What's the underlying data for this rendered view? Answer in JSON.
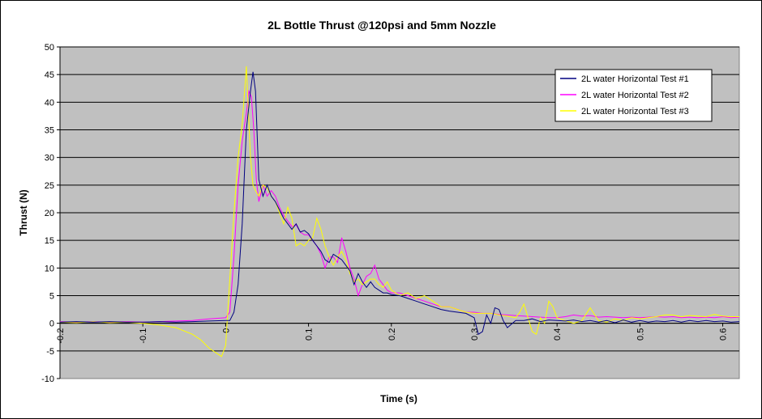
{
  "chart_data": {
    "type": "line",
    "title": "2L Bottle Thrust @120psi and 5mm Nozzle",
    "xlabel": "Time (s)",
    "ylabel": "Thrust (N)",
    "xlim": [
      -0.2,
      0.62
    ],
    "ylim": [
      -10,
      50
    ],
    "x_ticks": [
      "-0.2",
      "-0.1",
      "0",
      "0.1",
      "0.2",
      "0.3",
      "0.4",
      "0.5",
      "0.6"
    ],
    "x_tick_values": [
      -0.2,
      -0.1,
      0,
      0.1,
      0.2,
      0.3,
      0.4,
      0.5,
      0.6
    ],
    "y_ticks": [
      "-10",
      "-5",
      "0",
      "5",
      "10",
      "15",
      "20",
      "25",
      "30",
      "35",
      "40",
      "45",
      "50"
    ],
    "y_tick_values": [
      -10,
      -5,
      0,
      5,
      10,
      15,
      20,
      25,
      30,
      35,
      40,
      45,
      50
    ],
    "grid": "horizontal",
    "legend": "top-right",
    "plot_background": "#c0c0c0",
    "series": [
      {
        "name": "2L water Horizontal Test #1",
        "color": "#000080",
        "points": [
          [
            -0.2,
            0.2
          ],
          [
            -0.18,
            0.3
          ],
          [
            -0.16,
            0.2
          ],
          [
            -0.14,
            0.3
          ],
          [
            -0.12,
            0.2
          ],
          [
            -0.1,
            0.2
          ],
          [
            -0.08,
            0.3
          ],
          [
            -0.06,
            0.2
          ],
          [
            -0.04,
            0.3
          ],
          [
            -0.02,
            0.4
          ],
          [
            0,
            0.5
          ],
          [
            0.005,
            0.5
          ],
          [
            0.01,
            2
          ],
          [
            0.015,
            7
          ],
          [
            0.02,
            18
          ],
          [
            0.025,
            35
          ],
          [
            0.03,
            42
          ],
          [
            0.033,
            45.5
          ],
          [
            0.036,
            42
          ],
          [
            0.04,
            26
          ],
          [
            0.045,
            23
          ],
          [
            0.05,
            25
          ],
          [
            0.055,
            23
          ],
          [
            0.06,
            22
          ],
          [
            0.065,
            20.5
          ],
          [
            0.07,
            19
          ],
          [
            0.075,
            18
          ],
          [
            0.08,
            17
          ],
          [
            0.085,
            18
          ],
          [
            0.09,
            16.5
          ],
          [
            0.095,
            16.8
          ],
          [
            0.1,
            16.2
          ],
          [
            0.105,
            15
          ],
          [
            0.11,
            14
          ],
          [
            0.115,
            13
          ],
          [
            0.12,
            11.5
          ],
          [
            0.125,
            11
          ],
          [
            0.13,
            12.5
          ],
          [
            0.135,
            12
          ],
          [
            0.14,
            11.5
          ],
          [
            0.145,
            10.5
          ],
          [
            0.15,
            9.5
          ],
          [
            0.155,
            7
          ],
          [
            0.16,
            9
          ],
          [
            0.165,
            7.5
          ],
          [
            0.17,
            6.5
          ],
          [
            0.175,
            7.5
          ],
          [
            0.18,
            6.5
          ],
          [
            0.185,
            6
          ],
          [
            0.19,
            5.5
          ],
          [
            0.195,
            5.5
          ],
          [
            0.2,
            5.2
          ],
          [
            0.21,
            5
          ],
          [
            0.22,
            4.5
          ],
          [
            0.23,
            4
          ],
          [
            0.24,
            3.5
          ],
          [
            0.25,
            3
          ],
          [
            0.26,
            2.5
          ],
          [
            0.27,
            2.2
          ],
          [
            0.28,
            2
          ],
          [
            0.29,
            1.8
          ],
          [
            0.3,
            1
          ],
          [
            0.305,
            -2
          ],
          [
            0.31,
            -1.5
          ],
          [
            0.315,
            1.5
          ],
          [
            0.32,
            0
          ],
          [
            0.325,
            2.8
          ],
          [
            0.33,
            2.5
          ],
          [
            0.335,
            0.5
          ],
          [
            0.34,
            -0.8
          ],
          [
            0.35,
            0.5
          ],
          [
            0.36,
            0.5
          ],
          [
            0.37,
            0.8
          ],
          [
            0.38,
            0.3
          ],
          [
            0.39,
            0.6
          ],
          [
            0.4,
            0.5
          ],
          [
            0.41,
            0.4
          ],
          [
            0.42,
            0.6
          ],
          [
            0.43,
            0.3
          ],
          [
            0.44,
            0.5
          ],
          [
            0.45,
            0.2
          ],
          [
            0.46,
            0.5
          ],
          [
            0.47,
            0.1
          ],
          [
            0.48,
            0.6
          ],
          [
            0.49,
            0.2
          ],
          [
            0.5,
            0.5
          ],
          [
            0.51,
            0.2
          ],
          [
            0.52,
            0.4
          ],
          [
            0.53,
            0.3
          ],
          [
            0.54,
            0.5
          ],
          [
            0.55,
            0.2
          ],
          [
            0.56,
            0.5
          ],
          [
            0.57,
            0.3
          ],
          [
            0.58,
            0.5
          ],
          [
            0.59,
            0.3
          ],
          [
            0.6,
            0.4
          ],
          [
            0.61,
            0.2
          ],
          [
            0.62,
            0.3
          ]
        ]
      },
      {
        "name": "2L water Horizontal Test #2",
        "color": "#ff00ff",
        "points": [
          [
            -0.2,
            0.3
          ],
          [
            -0.18,
            0.2
          ],
          [
            -0.16,
            0.3
          ],
          [
            -0.14,
            0.2
          ],
          [
            -0.12,
            0.3
          ],
          [
            -0.1,
            0.2
          ],
          [
            -0.08,
            0.3
          ],
          [
            -0.06,
            0.4
          ],
          [
            -0.04,
            0.5
          ],
          [
            -0.02,
            0.8
          ],
          [
            0,
            1
          ],
          [
            0.005,
            2
          ],
          [
            0.01,
            12
          ],
          [
            0.015,
            25
          ],
          [
            0.02,
            33
          ],
          [
            0.025,
            38
          ],
          [
            0.028,
            42
          ],
          [
            0.031,
            41
          ],
          [
            0.034,
            35
          ],
          [
            0.037,
            26
          ],
          [
            0.04,
            22
          ],
          [
            0.045,
            25
          ],
          [
            0.05,
            23
          ],
          [
            0.055,
            24
          ],
          [
            0.06,
            23
          ],
          [
            0.065,
            21
          ],
          [
            0.07,
            19.5
          ],
          [
            0.075,
            18.5
          ],
          [
            0.08,
            17.5
          ],
          [
            0.085,
            17.8
          ],
          [
            0.09,
            16.5
          ],
          [
            0.095,
            16
          ],
          [
            0.1,
            16
          ],
          [
            0.105,
            15
          ],
          [
            0.11,
            14
          ],
          [
            0.115,
            12.5
          ],
          [
            0.12,
            10
          ],
          [
            0.125,
            12
          ],
          [
            0.13,
            12
          ],
          [
            0.135,
            11
          ],
          [
            0.14,
            15.5
          ],
          [
            0.145,
            13
          ],
          [
            0.15,
            10
          ],
          [
            0.155,
            8
          ],
          [
            0.16,
            5
          ],
          [
            0.165,
            7
          ],
          [
            0.17,
            8.5
          ],
          [
            0.175,
            9
          ],
          [
            0.18,
            10.5
          ],
          [
            0.185,
            8
          ],
          [
            0.19,
            7
          ],
          [
            0.195,
            6
          ],
          [
            0.2,
            5.5
          ],
          [
            0.21,
            5.5
          ],
          [
            0.22,
            5
          ],
          [
            0.23,
            4.5
          ],
          [
            0.24,
            4
          ],
          [
            0.25,
            3.5
          ],
          [
            0.26,
            3
          ],
          [
            0.27,
            3
          ],
          [
            0.28,
            2.5
          ],
          [
            0.29,
            2
          ],
          [
            0.3,
            2
          ],
          [
            0.31,
            1.8
          ],
          [
            0.32,
            1.8
          ],
          [
            0.33,
            1.6
          ],
          [
            0.34,
            1.5
          ],
          [
            0.35,
            1.4
          ],
          [
            0.36,
            1.3
          ],
          [
            0.37,
            1.2
          ],
          [
            0.38,
            1.1
          ],
          [
            0.39,
            1
          ],
          [
            0.4,
            1
          ],
          [
            0.41,
            1.2
          ],
          [
            0.42,
            1.5
          ],
          [
            0.43,
            1.3
          ],
          [
            0.44,
            1.4
          ],
          [
            0.45,
            1.1
          ],
          [
            0.46,
            1.2
          ],
          [
            0.47,
            1.1
          ],
          [
            0.48,
            1
          ],
          [
            0.49,
            1.1
          ],
          [
            0.5,
            1
          ],
          [
            0.51,
            1.1
          ],
          [
            0.52,
            1.2
          ],
          [
            0.53,
            1.1
          ],
          [
            0.54,
            1.2
          ],
          [
            0.55,
            1
          ],
          [
            0.56,
            1.1
          ],
          [
            0.57,
            1
          ],
          [
            0.58,
            1.1
          ],
          [
            0.59,
            1
          ],
          [
            0.6,
            1.2
          ],
          [
            0.61,
            1
          ],
          [
            0.62,
            1.1
          ]
        ]
      },
      {
        "name": "2L water Horizontal Test #3",
        "color": "#ffff00",
        "points": [
          [
            -0.2,
            0.2
          ],
          [
            -0.18,
            0.1
          ],
          [
            -0.16,
            0.3
          ],
          [
            -0.14,
            0.1
          ],
          [
            -0.12,
            0.2
          ],
          [
            -0.1,
            0
          ],
          [
            -0.08,
            -0.3
          ],
          [
            -0.06,
            -0.8
          ],
          [
            -0.04,
            -2
          ],
          [
            -0.03,
            -3
          ],
          [
            -0.02,
            -4.5
          ],
          [
            -0.01,
            -5.5
          ],
          [
            -0.005,
            -6
          ],
          [
            0,
            -4
          ],
          [
            0.005,
            8
          ],
          [
            0.01,
            20
          ],
          [
            0.015,
            30
          ],
          [
            0.02,
            36
          ],
          [
            0.025,
            46.5
          ],
          [
            0.03,
            30
          ],
          [
            0.033,
            25
          ],
          [
            0.036,
            24
          ],
          [
            0.04,
            23
          ],
          [
            0.045,
            25
          ],
          [
            0.05,
            24.5
          ],
          [
            0.055,
            23
          ],
          [
            0.06,
            22
          ],
          [
            0.065,
            20
          ],
          [
            0.07,
            18
          ],
          [
            0.075,
            21
          ],
          [
            0.08,
            19
          ],
          [
            0.085,
            14
          ],
          [
            0.09,
            14.5
          ],
          [
            0.095,
            14
          ],
          [
            0.1,
            15
          ],
          [
            0.105,
            15.5
          ],
          [
            0.11,
            19
          ],
          [
            0.115,
            17
          ],
          [
            0.12,
            14
          ],
          [
            0.125,
            12
          ],
          [
            0.13,
            10.5
          ],
          [
            0.135,
            12
          ],
          [
            0.14,
            13
          ],
          [
            0.145,
            11.5
          ],
          [
            0.15,
            9
          ],
          [
            0.155,
            7.5
          ],
          [
            0.16,
            8
          ],
          [
            0.165,
            7
          ],
          [
            0.17,
            7.5
          ],
          [
            0.175,
            8
          ],
          [
            0.18,
            8
          ],
          [
            0.185,
            7
          ],
          [
            0.19,
            6.5
          ],
          [
            0.195,
            7.5
          ],
          [
            0.2,
            6
          ],
          [
            0.21,
            5
          ],
          [
            0.22,
            5.5
          ],
          [
            0.23,
            4.5
          ],
          [
            0.24,
            5
          ],
          [
            0.25,
            4
          ],
          [
            0.26,
            3
          ],
          [
            0.27,
            3
          ],
          [
            0.28,
            2.5
          ],
          [
            0.29,
            2
          ],
          [
            0.3,
            1.8
          ],
          [
            0.31,
            1.8
          ],
          [
            0.32,
            1.8
          ],
          [
            0.33,
            1.5
          ],
          [
            0.34,
            1.3
          ],
          [
            0.35,
            1
          ],
          [
            0.355,
            2
          ],
          [
            0.36,
            3.5
          ],
          [
            0.365,
            1
          ],
          [
            0.37,
            -1.5
          ],
          [
            0.375,
            -2
          ],
          [
            0.38,
            1
          ],
          [
            0.385,
            0
          ],
          [
            0.39,
            4
          ],
          [
            0.395,
            3
          ],
          [
            0.4,
            1
          ],
          [
            0.41,
            0.5
          ],
          [
            0.42,
            0
          ],
          [
            0.43,
            0.5
          ],
          [
            0.44,
            2.8
          ],
          [
            0.45,
            0.5
          ],
          [
            0.46,
            0.2
          ],
          [
            0.47,
            0.8
          ],
          [
            0.48,
            0.5
          ],
          [
            0.49,
            1
          ],
          [
            0.5,
            0.8
          ],
          [
            0.51,
            1
          ],
          [
            0.52,
            1.2
          ],
          [
            0.53,
            1.5
          ],
          [
            0.54,
            1.5
          ],
          [
            0.55,
            1.2
          ],
          [
            0.56,
            1.4
          ],
          [
            0.57,
            1.3
          ],
          [
            0.58,
            1.2
          ],
          [
            0.59,
            1.6
          ],
          [
            0.6,
            1.3
          ],
          [
            0.61,
            1.2
          ],
          [
            0.62,
            1.2
          ]
        ]
      }
    ]
  }
}
